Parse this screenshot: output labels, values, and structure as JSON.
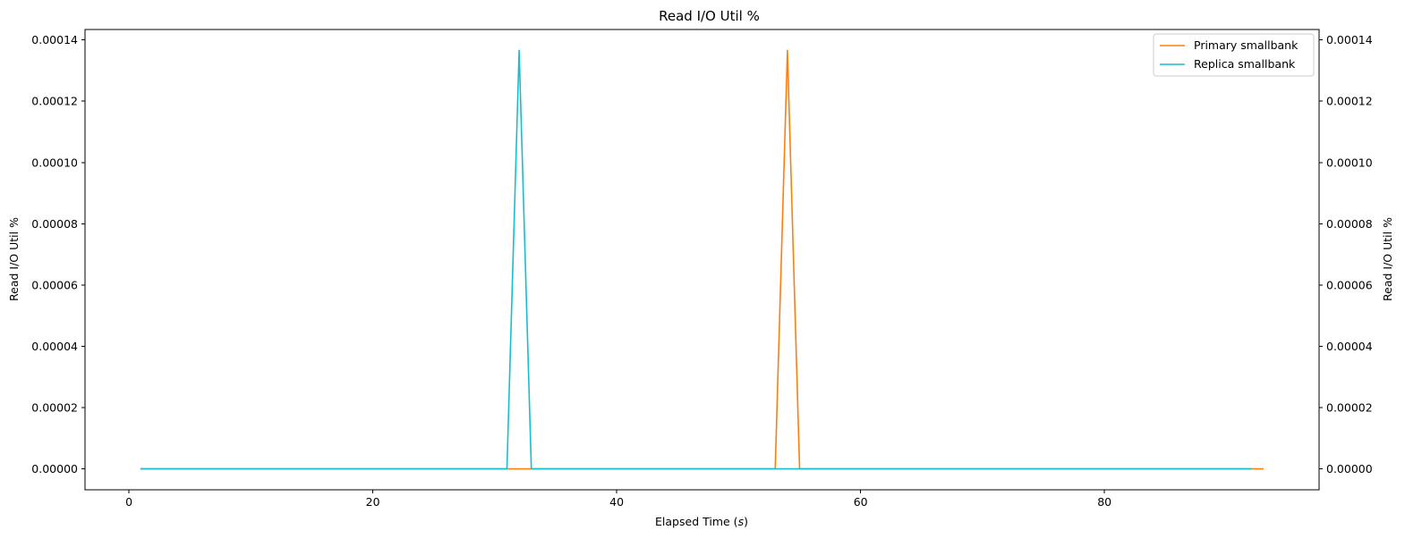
{
  "chart_data": {
    "type": "line",
    "title": "Read I/O Util %",
    "xlabel_prefix": "Elapsed Time (",
    "xlabel_var": "s",
    "xlabel_suffix": ")",
    "ylabel": "Read I/O Util %",
    "ylabel_right": "Read I/O Util %",
    "xlim": [
      -3.6,
      97.6
    ],
    "ylim": [
      -6.83e-06,
      0.00014341
    ],
    "x_ticks": [
      0,
      20,
      40,
      60,
      80
    ],
    "x_tick_labels": [
      "0",
      "20",
      "40",
      "60",
      "80"
    ],
    "y_ticks": [
      0,
      2e-05,
      4e-05,
      6e-05,
      8e-05,
      0.0001,
      0.00012,
      0.00014
    ],
    "y_tick_labels": [
      "0.00000",
      "0.00002",
      "0.00004",
      "0.00006",
      "0.00008",
      "0.00010",
      "0.00012",
      "0.00014"
    ],
    "y_tick_labels_right": [
      "0.00000",
      "0.00002",
      "0.00004",
      "0.00006",
      "0.00008",
      "0.00010",
      "0.00012",
      "0.00014"
    ],
    "grid": false,
    "legend_position": "top-right",
    "series": [
      {
        "name": "Primary smallbank",
        "color": "#ff7f0e",
        "x": [
          1,
          53,
          54,
          55,
          93
        ],
        "y": [
          0,
          0,
          0.0001366,
          0,
          0
        ]
      },
      {
        "name": "Replica smallbank",
        "color": "#17becf",
        "x": [
          1,
          31,
          32,
          33,
          92
        ],
        "y": [
          0,
          0,
          0.0001366,
          0,
          0
        ]
      }
    ]
  }
}
